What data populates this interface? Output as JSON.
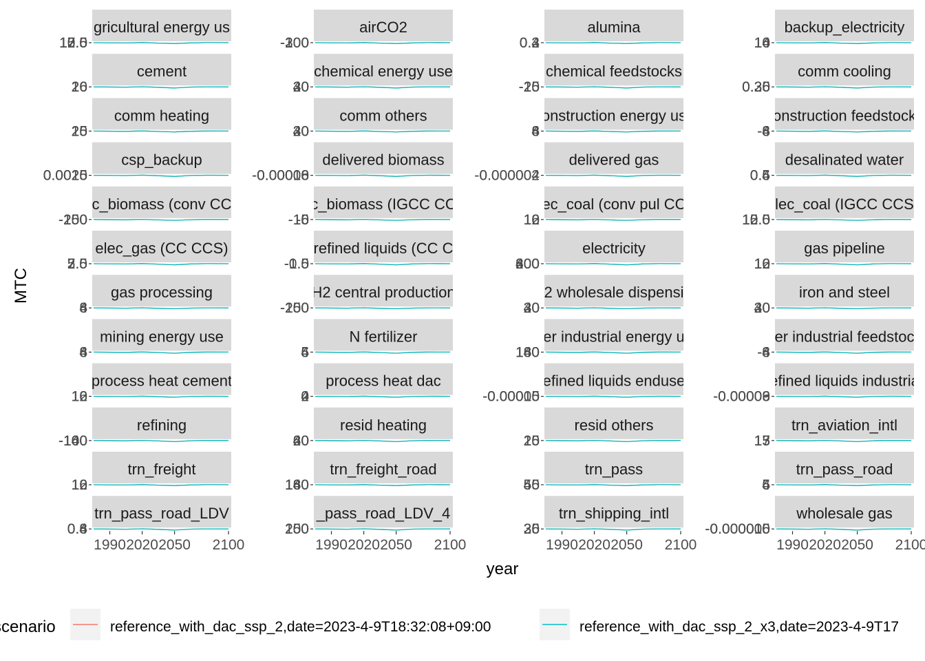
{
  "figure": {
    "ylabel": "MTC",
    "xlabel": "year",
    "legend_title": "scenario",
    "legend_position": "bottom"
  },
  "colors": {
    "series_1": "#F8766D",
    "series_2": "#00BFC4",
    "strip_bg": "#D9D9D9",
    "tick_text": "#4D4D4D",
    "axis_text": "#000000"
  },
  "chart_data": {
    "type": "line",
    "facet_layout": {
      "columns": 4,
      "rows": 12
    },
    "x_ticks": [
      1990,
      2020,
      2050,
      2100
    ],
    "xlim": [
      1975,
      2100
    ],
    "series": [
      {
        "name": "reference_with_dac_ssp_2,date=2023-4-9T18:32:08+09:00",
        "color": "#F8766D"
      },
      {
        "name": "reference_with_dac_ssp_2_x3,date=2023-4-9T17",
        "color": "#00BFC4"
      }
    ],
    "grid": false,
    "panels": [
      {
        "title": "gricultural energy us",
        "tick_labels": [
          "15.0",
          "12.5",
          "10.0",
          "7.5"
        ]
      },
      {
        "title": "airCO2",
        "tick_labels": [
          "-300",
          "-200",
          "-100"
        ]
      },
      {
        "title": "alumina",
        "tick_labels": [
          "0.4",
          "0.3",
          "0.2"
        ]
      },
      {
        "title": "backup_electricity",
        "tick_labels": [
          "16",
          "14",
          "10"
        ]
      },
      {
        "title": "cement",
        "tick_labels": [
          "26",
          "20",
          "16"
        ]
      },
      {
        "title": "chemical energy use",
        "tick_labels": [
          "40",
          "30",
          "20"
        ]
      },
      {
        "title": "chemical feedstocks",
        "tick_labels": [
          "-25",
          "-20",
          "-15"
        ]
      },
      {
        "title": "comm cooling",
        "tick_labels": [
          "0.35",
          "0.30",
          "0.26"
        ]
      },
      {
        "title": "comm heating",
        "tick_labels": [
          "25",
          "20",
          "15"
        ]
      },
      {
        "title": "comm others",
        "tick_labels": [
          "40",
          "30",
          "20"
        ]
      },
      {
        "title": "onstruction energy us",
        "tick_labels": [
          "8",
          "6",
          "4"
        ]
      },
      {
        "title": "onstruction feedstock",
        "tick_labels": [
          "-8",
          "-6",
          "-4"
        ]
      },
      {
        "title": "csp_backup",
        "tick_labels": [
          "0.0025",
          "0.0020",
          "0.0015"
        ]
      },
      {
        "title": "delivered biomass",
        "tick_labels": [
          "-0.00006",
          "-0.00008",
          "-0.00010"
        ]
      },
      {
        "title": "delivered gas",
        "tick_labels": [
          "-0.000002",
          "-0.000004"
        ]
      },
      {
        "title": "desalinated water",
        "tick_labels": [
          "0.6",
          "0.5",
          "0.4"
        ]
      },
      {
        "title": "c_biomass (conv CC",
        "tick_labels": [
          "-200",
          "-250",
          "-150"
        ]
      },
      {
        "title": "c_biomass (IGCC CC",
        "tick_labels": [
          "-16",
          "-10",
          "-5"
        ]
      },
      {
        "title": "ec_coal (conv pul CC",
        "tick_labels": [
          "16",
          "12",
          "10"
        ]
      },
      {
        "title": "lec_coal (IGCC CCS",
        "tick_labels": [
          "15.0",
          "12.5",
          "10.0"
        ]
      },
      {
        "title": "elec_gas (CC CCS)",
        "tick_labels": [
          "7.5",
          "5.0",
          "2.5"
        ]
      },
      {
        "title": "refined liquids (CC C",
        "tick_labels": [
          "-0.5",
          "-1.0",
          "-1.5"
        ]
      },
      {
        "title": "electricity",
        "tick_labels": [
          "800",
          "600",
          "400",
          "200"
        ]
      },
      {
        "title": "gas pipeline",
        "tick_labels": [
          "16",
          "12",
          "10"
        ]
      },
      {
        "title": "gas processing",
        "tick_labels": [
          "8",
          "6",
          "4"
        ]
      },
      {
        "title": "H2 central production",
        "tick_labels": [
          "-200",
          "-250",
          "-150"
        ]
      },
      {
        "title": "2 wholesale dispensi",
        "tick_labels": [
          "40",
          "30",
          "20"
        ]
      },
      {
        "title": "iron and steel",
        "tick_labels": [
          "40",
          "30",
          "20"
        ]
      },
      {
        "title": "mining energy use",
        "tick_labels": [
          "8",
          "6",
          "4"
        ]
      },
      {
        "title": "N fertilizer",
        "tick_labels": [
          "6",
          "5",
          "4"
        ]
      },
      {
        "title": "er industrial energy u",
        "tick_labels": [
          "180",
          "160",
          "140"
        ]
      },
      {
        "title": "er industrial feedstoc",
        "tick_labels": [
          "-8",
          "-6",
          "-4"
        ]
      },
      {
        "title": "process heat cement",
        "tick_labels": [
          "16",
          "12",
          "10"
        ]
      },
      {
        "title": "process heat dac",
        "tick_labels": [
          "4",
          "2",
          "0"
        ]
      },
      {
        "title": "efined liquids enduse",
        "tick_labels": [
          "-0.00015",
          "-0.00010",
          "-0.00005"
        ]
      },
      {
        "title": "efined liquids industria",
        "tick_labels": [
          "-0.00009",
          "-0.00006",
          "-0.00003"
        ]
      },
      {
        "title": "refining",
        "tick_labels": [
          "-160",
          "-140",
          "-100"
        ]
      },
      {
        "title": "resid heating",
        "tick_labels": [
          "60",
          "40",
          "20"
        ]
      },
      {
        "title": "resid others",
        "tick_labels": [
          "25",
          "20",
          "15"
        ]
      },
      {
        "title": "trn_aviation_intl",
        "tick_labels": [
          "17",
          "15",
          "13"
        ]
      },
      {
        "title": "trn_freight",
        "tick_labels": [
          "16",
          "12",
          "10"
        ]
      },
      {
        "title": "trn_freight_road",
        "tick_labels": [
          "180",
          "160",
          "140"
        ]
      },
      {
        "title": "trn_pass",
        "tick_labels": [
          "55",
          "50",
          "45"
        ]
      },
      {
        "title": "trn_pass_road",
        "tick_labels": [
          "6",
          "5",
          "4"
        ]
      },
      {
        "title": "trn_pass_road_LDV",
        "tick_labels": [
          "0.8",
          "0.6",
          "0.4"
        ]
      },
      {
        "title": "_pass_road_LDV_4",
        "tick_labels": [
          "250",
          "200",
          "150"
        ]
      },
      {
        "title": "trn_shipping_intl",
        "tick_labels": [
          "35",
          "30",
          "26"
        ]
      },
      {
        "title": "wholesale gas",
        "tick_labels": [
          "-0.000005",
          "-0.000010",
          "-0.000016"
        ]
      }
    ]
  }
}
